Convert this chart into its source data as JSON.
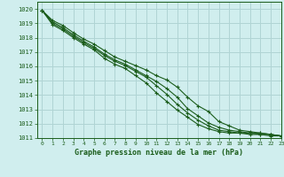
{
  "title": "Graphe pression niveau de la mer (hPa)",
  "bg_color": "#d0eeee",
  "grid_color": "#b0d4d4",
  "line_color": "#1a5c1a",
  "xlim": [
    -0.5,
    23
  ],
  "ylim": [
    1011,
    1020.5
  ],
  "yticks": [
    1011,
    1012,
    1013,
    1014,
    1015,
    1016,
    1017,
    1018,
    1019,
    1020
  ],
  "xticks": [
    0,
    1,
    2,
    3,
    4,
    5,
    6,
    7,
    8,
    9,
    10,
    11,
    12,
    13,
    14,
    15,
    16,
    17,
    18,
    19,
    20,
    21,
    22,
    23
  ],
  "series": [
    {
      "x": [
        0,
        1,
        2,
        3,
        4,
        5,
        6,
        7,
        8,
        9,
        10,
        11,
        12,
        13,
        14,
        15,
        16,
        17,
        18,
        19,
        20,
        21,
        22,
        23
      ],
      "y": [
        1019.9,
        1019.2,
        1018.85,
        1018.35,
        1017.9,
        1017.55,
        1017.1,
        1016.65,
        1016.35,
        1016.05,
        1015.75,
        1015.35,
        1015.05,
        1014.55,
        1013.85,
        1013.25,
        1012.85,
        1012.15,
        1011.85,
        1011.55,
        1011.45,
        1011.35,
        1011.25,
        1011.15
      ]
    },
    {
      "x": [
        0,
        1,
        2,
        3,
        4,
        5,
        6,
        7,
        8,
        9,
        10,
        11,
        12,
        13,
        14,
        15,
        16,
        17,
        18,
        19,
        20,
        21,
        22,
        23
      ],
      "y": [
        1019.9,
        1019.1,
        1018.7,
        1018.2,
        1017.75,
        1017.35,
        1016.85,
        1016.45,
        1016.15,
        1015.75,
        1015.35,
        1014.95,
        1014.45,
        1013.85,
        1013.05,
        1012.55,
        1012.05,
        1011.75,
        1011.55,
        1011.45,
        1011.35,
        1011.35,
        1011.25,
        1011.15
      ]
    },
    {
      "x": [
        0,
        1,
        2,
        3,
        4,
        5,
        6,
        7,
        8,
        9,
        10,
        11,
        12,
        13,
        14,
        15,
        16,
        17,
        18,
        19,
        20,
        21,
        22,
        23
      ],
      "y": [
        1019.9,
        1019.0,
        1018.6,
        1018.1,
        1017.65,
        1017.25,
        1016.75,
        1016.35,
        1016.05,
        1015.65,
        1015.25,
        1014.65,
        1014.05,
        1013.35,
        1012.75,
        1012.25,
        1011.85,
        1011.55,
        1011.45,
        1011.35,
        1011.35,
        1011.25,
        1011.25,
        1011.15
      ]
    },
    {
      "x": [
        0,
        1,
        2,
        3,
        4,
        5,
        6,
        7,
        8,
        9,
        10,
        11,
        12,
        13,
        14,
        15,
        16,
        17,
        18,
        19,
        20,
        21,
        22,
        23
      ],
      "y": [
        1019.9,
        1018.9,
        1018.5,
        1018.0,
        1017.55,
        1017.15,
        1016.55,
        1016.15,
        1015.85,
        1015.35,
        1014.85,
        1014.15,
        1013.55,
        1012.95,
        1012.45,
        1011.95,
        1011.65,
        1011.45,
        1011.35,
        1011.35,
        1011.25,
        1011.25,
        1011.15,
        1011.15
      ]
    }
  ]
}
